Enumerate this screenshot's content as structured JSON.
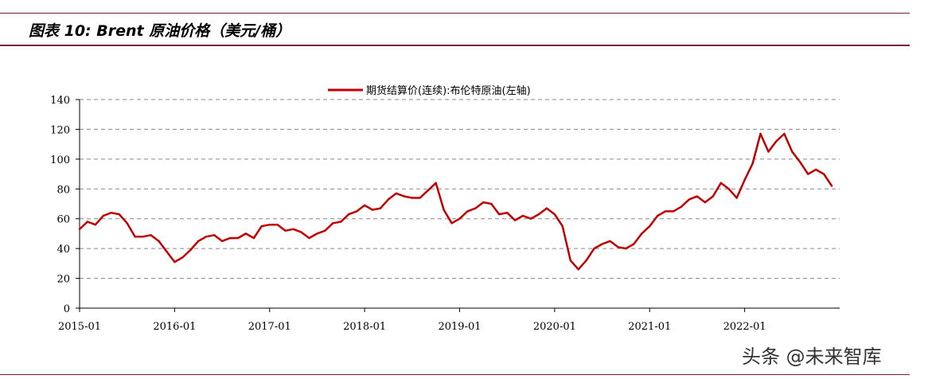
{
  "header": {
    "title": "图表 10: Brent 原油价格（美元/桶）"
  },
  "watermark": "头条 @未来智库",
  "chart_data": {
    "type": "line",
    "title": "",
    "xlabel": "",
    "ylabel": "",
    "ylim": [
      0,
      140
    ],
    "y_ticks": [
      0,
      20,
      40,
      60,
      80,
      100,
      120,
      140
    ],
    "x_range": [
      "2015-01",
      "2022-12"
    ],
    "x_ticks": [
      "2015-01",
      "2016-01",
      "2017-01",
      "2018-01",
      "2019-01",
      "2020-01",
      "2021-01",
      "2022-01"
    ],
    "grid": "horizontal-dashed",
    "legend_position": "top-center",
    "series": [
      {
        "name": "期货结算价(连续):布伦特原油(左轴)",
        "color": "#c00000",
        "points": [
          [
            "2015-01",
            53
          ],
          [
            "2015-02",
            58
          ],
          [
            "2015-03",
            56
          ],
          [
            "2015-04",
            62
          ],
          [
            "2015-05",
            64
          ],
          [
            "2015-06",
            63
          ],
          [
            "2015-07",
            57
          ],
          [
            "2015-08",
            48
          ],
          [
            "2015-09",
            48
          ],
          [
            "2015-10",
            49
          ],
          [
            "2015-11",
            45
          ],
          [
            "2015-12",
            38
          ],
          [
            "2016-01",
            31
          ],
          [
            "2016-02",
            34
          ],
          [
            "2016-03",
            39
          ],
          [
            "2016-04",
            45
          ],
          [
            "2016-05",
            48
          ],
          [
            "2016-06",
            49
          ],
          [
            "2016-07",
            45
          ],
          [
            "2016-08",
            47
          ],
          [
            "2016-09",
            47
          ],
          [
            "2016-10",
            50
          ],
          [
            "2016-11",
            47
          ],
          [
            "2016-12",
            55
          ],
          [
            "2017-01",
            56
          ],
          [
            "2017-02",
            56
          ],
          [
            "2017-03",
            52
          ],
          [
            "2017-04",
            53
          ],
          [
            "2017-05",
            51
          ],
          [
            "2017-06",
            47
          ],
          [
            "2017-07",
            50
          ],
          [
            "2017-08",
            52
          ],
          [
            "2017-09",
            57
          ],
          [
            "2017-10",
            58
          ],
          [
            "2017-11",
            63
          ],
          [
            "2017-12",
            65
          ],
          [
            "2018-01",
            69
          ],
          [
            "2018-02",
            66
          ],
          [
            "2018-03",
            67
          ],
          [
            "2018-04",
            73
          ],
          [
            "2018-05",
            77
          ],
          [
            "2018-06",
            75
          ],
          [
            "2018-07",
            74
          ],
          [
            "2018-08",
            74
          ],
          [
            "2018-09",
            79
          ],
          [
            "2018-10",
            84
          ],
          [
            "2018-11",
            66
          ],
          [
            "2018-12",
            57
          ],
          [
            "2019-01",
            60
          ],
          [
            "2019-02",
            65
          ],
          [
            "2019-03",
            67
          ],
          [
            "2019-04",
            71
          ],
          [
            "2019-05",
            70
          ],
          [
            "2019-06",
            63
          ],
          [
            "2019-07",
            64
          ],
          [
            "2019-08",
            59
          ],
          [
            "2019-09",
            62
          ],
          [
            "2019-10",
            60
          ],
          [
            "2019-11",
            63
          ],
          [
            "2019-12",
            67
          ],
          [
            "2020-01",
            63
          ],
          [
            "2020-02",
            55
          ],
          [
            "2020-03",
            32
          ],
          [
            "2020-04",
            26
          ],
          [
            "2020-05",
            32
          ],
          [
            "2020-06",
            40
          ],
          [
            "2020-07",
            43
          ],
          [
            "2020-08",
            45
          ],
          [
            "2020-09",
            41
          ],
          [
            "2020-10",
            40
          ],
          [
            "2020-11",
            43
          ],
          [
            "2020-12",
            50
          ],
          [
            "2021-01",
            55
          ],
          [
            "2021-02",
            62
          ],
          [
            "2021-03",
            65
          ],
          [
            "2021-04",
            65
          ],
          [
            "2021-05",
            68
          ],
          [
            "2021-06",
            73
          ],
          [
            "2021-07",
            75
          ],
          [
            "2021-08",
            71
          ],
          [
            "2021-09",
            75
          ],
          [
            "2021-10",
            84
          ],
          [
            "2021-11",
            80
          ],
          [
            "2021-12",
            74
          ],
          [
            "2022-01",
            86
          ],
          [
            "2022-02",
            97
          ],
          [
            "2022-03",
            117
          ],
          [
            "2022-04",
            105
          ],
          [
            "2022-05",
            112
          ],
          [
            "2022-06",
            117
          ],
          [
            "2022-07",
            105
          ],
          [
            "2022-08",
            98
          ],
          [
            "2022-09",
            90
          ],
          [
            "2022-10",
            93
          ],
          [
            "2022-11",
            90
          ],
          [
            "2022-12",
            82
          ]
        ]
      }
    ]
  }
}
